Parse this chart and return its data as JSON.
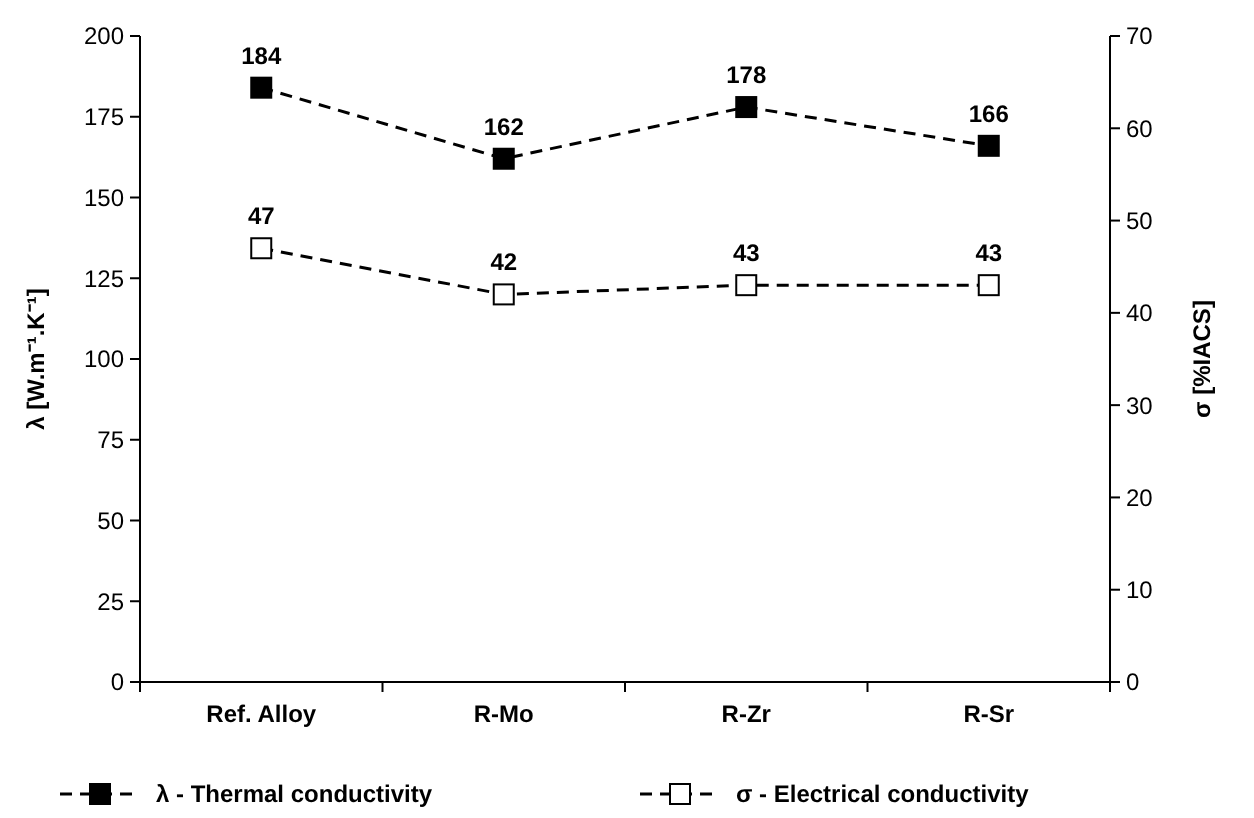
{
  "chart_data": {
    "type": "line",
    "categories": [
      "Ref. Alloy",
      "R-Mo",
      "R-Zr",
      "R-Sr"
    ],
    "ylabel": "λ [W.m⁻¹.K⁻¹]",
    "y2label": "σ [%IACS]",
    "ylim": [
      0,
      200
    ],
    "yticks": [
      0,
      25,
      50,
      75,
      100,
      125,
      150,
      175,
      200
    ],
    "y2lim": [
      0,
      70
    ],
    "y2ticks": [
      0,
      10,
      20,
      30,
      40,
      50,
      60,
      70
    ],
    "series": [
      {
        "name": "λ - Thermal conductivity",
        "color": "#000000",
        "values": [
          184,
          162,
          178,
          166
        ]
      },
      {
        "name": "σ - Electrical conductivity",
        "color": "#000000",
        "values": [
          47,
          42,
          43,
          43
        ],
        "axis": "y2"
      }
    ],
    "marker": "square",
    "line_style": "dashed",
    "data_labels": true,
    "grid": false,
    "legend": "bottom"
  }
}
